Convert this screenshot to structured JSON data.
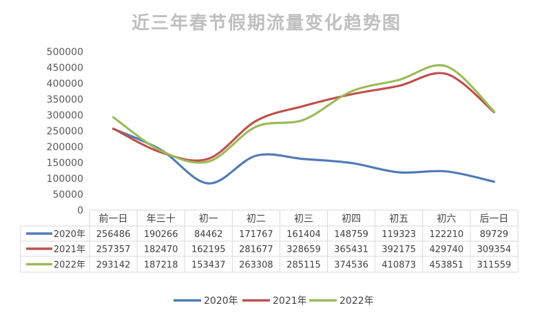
{
  "chart_data": {
    "type": "line",
    "title": "近三年春节假期流量变化趋势图",
    "categories": [
      "前一日",
      "年三十",
      "初一",
      "初二",
      "初三",
      "初四",
      "初五",
      "初六",
      "后一日"
    ],
    "ylim": [
      0,
      500000
    ],
    "yticks": [
      "0",
      "50000",
      "100000",
      "150000",
      "200000",
      "250000",
      "300000",
      "350000",
      "400000",
      "450000",
      "500000"
    ],
    "grid": false,
    "smooth": true,
    "data_table": true,
    "legend_position": "bottom",
    "series": [
      {
        "name": "2020年",
        "color": "#4f7bb8",
        "values": [
          256486,
          190266,
          84462,
          171767,
          161404,
          148759,
          119323,
          122210,
          89729
        ],
        "labels": [
          "256486",
          "190266",
          "84462",
          "171767",
          "161404",
          "148759",
          "119323",
          "122210",
          "89729"
        ]
      },
      {
        "name": "2021年",
        "color": "#bf504d",
        "values": [
          257357,
          182470,
          162195,
          281677,
          328659,
          365431,
          392175,
          429740,
          309354
        ],
        "labels": [
          "257357",
          "182470",
          "162195",
          "281677",
          "328659",
          "365431",
          "392175",
          "429740",
          "309354"
        ]
      },
      {
        "name": "2022年",
        "color": "#9bbb59",
        "values": [
          293142,
          187218,
          153437,
          263308,
          285115,
          374536,
          410873,
          453851,
          311559
        ],
        "labels": [
          "293142",
          "187218",
          "153437",
          "263308",
          "285115",
          "374536",
          "410873",
          "453851",
          "311559"
        ]
      }
    ]
  }
}
